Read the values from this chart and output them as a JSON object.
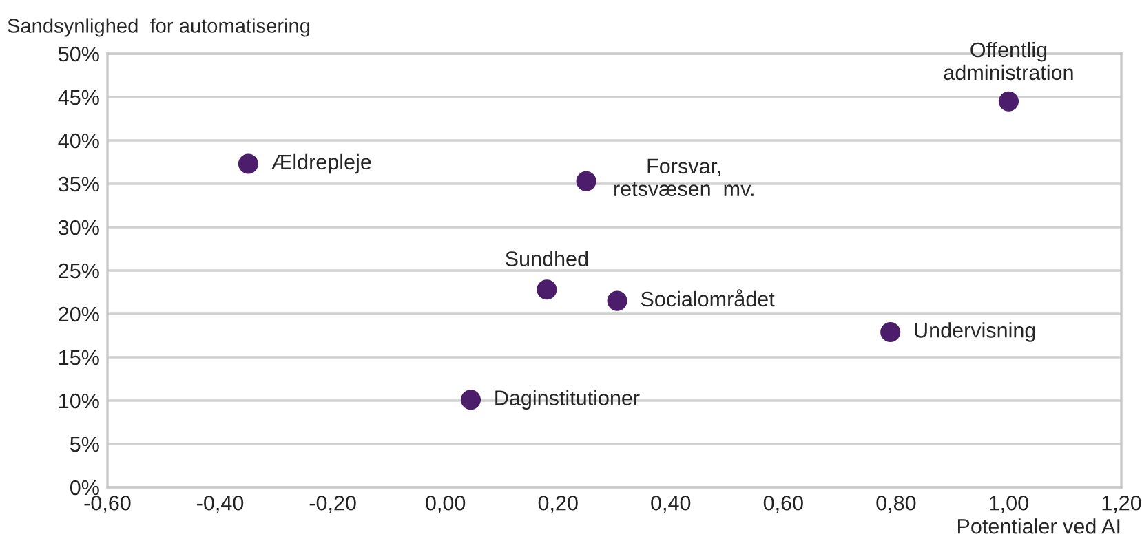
{
  "chart_data": {
    "type": "scatter",
    "xlabel": "Potentialer ved AI",
    "ylabel": "Sandsynlighed  for automatisering",
    "x": [
      -0.35,
      0.25,
      1.0,
      0.18,
      0.305,
      0.79,
      0.045
    ],
    "series": [
      {
        "color": "#4b1d6b",
        "values": [
          37.3,
          35.3,
          44.5,
          22.8,
          21.5,
          17.9,
          10.1
        ]
      }
    ],
    "annotations": [
      {
        "text": "Ældrepleje",
        "x": -0.35,
        "y": 37.3
      },
      {
        "text": "Forsvar,\nretsvæsen  mv.",
        "x": 0.25,
        "y": 35.3
      },
      {
        "text": "Offentlig\nadministration",
        "x": 1.0,
        "y": 44.5
      },
      {
        "text": "Sundhed",
        "x": 0.18,
        "y": 22.8
      },
      {
        "text": "Socialområdet",
        "x": 0.305,
        "y": 21.5
      },
      {
        "text": "Undervisning",
        "x": 0.79,
        "y": 17.9
      },
      {
        "text": "Daginstitutioner",
        "x": 0.045,
        "y": 10.1
      }
    ],
    "xlim": [
      -0.6,
      1.2
    ],
    "ylim": [
      0,
      50
    ],
    "xticks": [
      {
        "value": -0.6,
        "label": "-0,60"
      },
      {
        "value": -0.4,
        "label": "-0,40"
      },
      {
        "value": -0.2,
        "label": "-0,20"
      },
      {
        "value": 0,
        "label": "0,00"
      },
      {
        "value": 0.2,
        "label": "0,20"
      },
      {
        "value": 0.4,
        "label": "0,40"
      },
      {
        "value": 0.6,
        "label": "0,60"
      },
      {
        "value": 0.8,
        "label": "0,80"
      },
      {
        "value": 1.0,
        "label": "1,00"
      },
      {
        "value": 1.2,
        "label": "1,20"
      }
    ],
    "yticks": [
      {
        "value": 0,
        "label": "0%"
      },
      {
        "value": 5,
        "label": "5%"
      },
      {
        "value": 10,
        "label": "10%"
      },
      {
        "value": 15,
        "label": "15%"
      },
      {
        "value": 20,
        "label": "20%"
      },
      {
        "value": 25,
        "label": "25%"
      },
      {
        "value": 30,
        "label": "30%"
      },
      {
        "value": 35,
        "label": "35%"
      },
      {
        "value": 40,
        "label": "40%"
      },
      {
        "value": 45,
        "label": "45%"
      },
      {
        "value": 50,
        "label": "50%"
      }
    ],
    "grid": "y",
    "marker": "circle",
    "legend": false
  }
}
